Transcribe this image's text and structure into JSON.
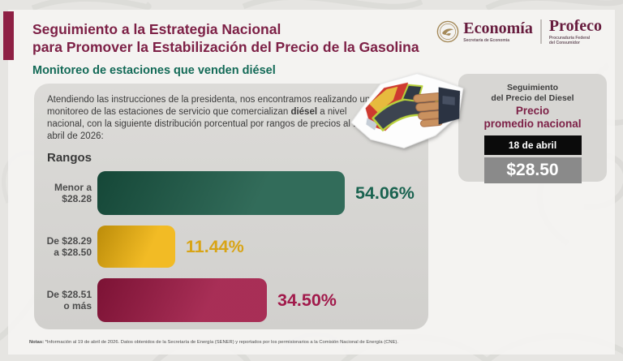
{
  "header": {
    "title_line1": "Seguimiento a la Estrategia Nacional",
    "title_line2": "para Promover la Estabilización del Precio de la Gasolina",
    "logos": {
      "economia": {
        "name": "Economía",
        "sub": "Secretaría de Economía"
      },
      "profeco": {
        "name": "Profeco",
        "sub_line1": "Procuraduría Federal",
        "sub_line2": "del Consumidor"
      }
    }
  },
  "subtitle": "Monitoreo de estaciones que venden diésel",
  "intro": {
    "pre": "Atendiendo las instrucciones de la presidenta, nos encontramos realizando un monitoreo de las estaciones de servicio que comercializan ",
    "bold": "diésel",
    "post": " a nivel nacional, con la siguiente distribución porcentual por rangos de precios al 19 de abril de 2026:"
  },
  "chart_data": {
    "type": "bar",
    "orientation": "horizontal",
    "title": "Rangos",
    "categories": [
      "Menor a $28.28",
      "De $28.29 a $28.50",
      "De $28.51 o más"
    ],
    "values": [
      54.06,
      11.44,
      34.5
    ],
    "value_labels": [
      "54.06%",
      "11.44%",
      "34.50%"
    ],
    "value_unit": "%",
    "xlim": [
      0,
      100
    ],
    "grid": false,
    "legend": false,
    "bar_colors": [
      "#1b5b47",
      "#f0b30c",
      "#9e1743"
    ]
  },
  "rangos_heading": "Rangos",
  "bars": [
    {
      "label_line1": "Menor a",
      "label_line2": "$28.28",
      "value": 54.06,
      "value_label": "54.06%",
      "bar_color": "#1b5b47",
      "value_color": "#1a6350"
    },
    {
      "label_line1": "De $28.29",
      "label_line2": "a $28.50",
      "value": 11.44,
      "value_label": "11.44%",
      "bar_color": "#f0b30c",
      "value_color": "#d8a415"
    },
    {
      "label_line1": "De $28.51",
      "label_line2": "o más",
      "value": 34.5,
      "value_label": "34.50%",
      "bar_color": "#9e1743",
      "value_color": "#a11a4b"
    }
  ],
  "sidebar": {
    "heading_line1": "Seguimiento",
    "heading_line2": "del Precio del Diesel",
    "subheading_line1": "Precio",
    "subheading_line2": "promedio nacional",
    "date": "18 de abril",
    "price": "$28.50"
  },
  "notes": {
    "label": "Notas:",
    "text": " *Información al 19 de abril de 2026. Datos obtenidos de la Secretaría de Energía (SENER) y reportados por los permisionarios a la Comisión Nacional de Energía (CNE)."
  },
  "colors": {
    "title_maroon": "#7d2046",
    "subtitle_green": "#136a57",
    "accent_maroon": "#8e2044",
    "panel_gray": "#d7d6d3",
    "date_black": "#0b0b0b",
    "price_gray": "#8a8a8a"
  }
}
